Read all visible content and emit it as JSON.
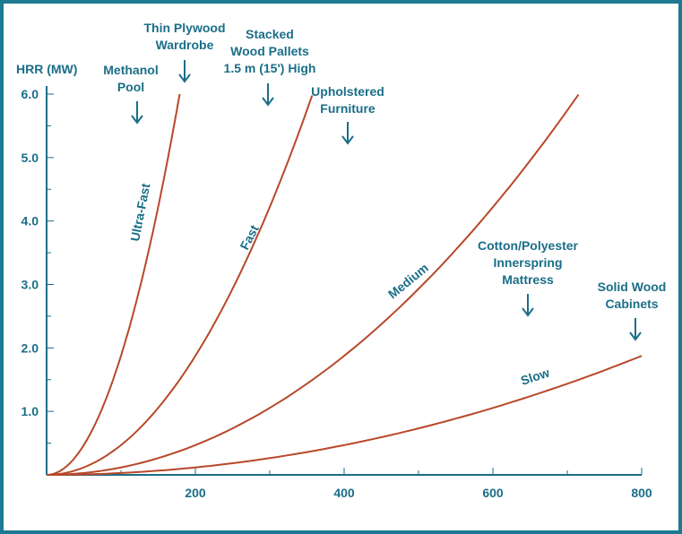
{
  "chart_data": {
    "type": "line",
    "title": "",
    "ylabel": "HRR (MW)",
    "xlabel": "",
    "xlim": [
      0,
      800
    ],
    "ylim": [
      0,
      6
    ],
    "x_ticks": [
      "200",
      "400",
      "600",
      "800"
    ],
    "y_ticks": [
      "1.0",
      "2.0",
      "3.0",
      "4.0",
      "5.0",
      "6.0"
    ],
    "colors": {
      "curve": "#b8482a",
      "axis": "#1a6e88",
      "border": "#1e7a92"
    },
    "series": [
      {
        "name": "Ultra-Fast",
        "alpha_kw_s2": 0.1876,
        "t_end": 179,
        "y_end": 6.0
      },
      {
        "name": "Fast",
        "alpha_kw_s2": 0.0469,
        "t_end": 357,
        "y_end": 6.0
      },
      {
        "name": "Medium",
        "alpha_kw_s2": 0.01172,
        "t_end": 715,
        "y_end": 6.0
      },
      {
        "name": "Slow",
        "alpha_kw_s2": 0.00293,
        "t_end": 800,
        "y_end": 1.9
      }
    ],
    "annotations": [
      {
        "id": "methanol",
        "lines": [
          "Methanol",
          "Pool"
        ]
      },
      {
        "id": "plywood",
        "lines": [
          "Thin Plywood",
          "Wardrobe"
        ]
      },
      {
        "id": "pallets",
        "lines": [
          "Stacked",
          "Wood Pallets",
          "1.5 m (15') High"
        ]
      },
      {
        "id": "furniture",
        "lines": [
          "Upholstered",
          "Furniture"
        ]
      },
      {
        "id": "mattress",
        "lines": [
          "Cotton/Polyester",
          "Innerspring",
          "Mattress"
        ]
      },
      {
        "id": "cabinets",
        "lines": [
          "Solid Wood",
          "Cabinets"
        ]
      }
    ]
  }
}
